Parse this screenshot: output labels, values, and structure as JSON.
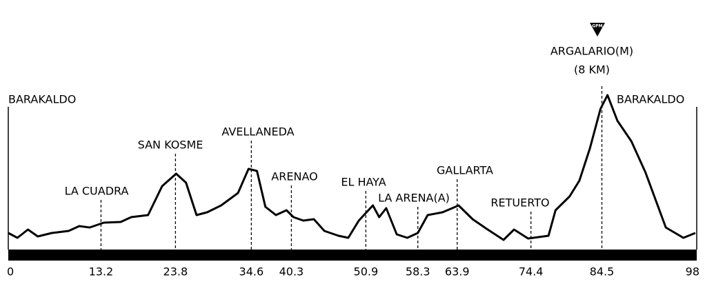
{
  "chart_data": {
    "type": "line",
    "x": [
      0,
      1.3,
      2.8,
      4.2,
      6.2,
      8.6,
      10.1,
      11.6,
      13.6,
      16,
      17.5,
      19.9,
      21.9,
      23.9,
      25.3,
      26.8,
      28.3,
      30.3,
      32.7,
      34.2,
      35.4,
      36.6,
      38.1,
      39.6,
      40.6,
      42,
      43.5,
      45,
      47,
      48.4,
      49.9,
      51.9,
      52.8,
      53.8,
      55.3,
      56.8,
      58.3,
      59.7,
      61.8,
      63.2,
      64.1,
      66.1,
      68.1,
      70.5,
      72,
      74,
      76.9,
      77.9,
      79.9,
      81.3,
      82.8,
      84.3,
      85.3,
      86.7,
      88.7,
      90.7,
      93.6,
      96.1,
      97.8
    ],
    "series": [
      {
        "color": "#000000",
        "values": [
          24,
          17,
          29,
          19,
          24,
          27,
          34,
          32,
          39,
          40,
          47,
          50,
          92,
          110,
          97,
          50,
          54,
          64,
          82,
          117,
          114,
          62,
          50,
          57,
          47,
          42,
          44,
          27,
          20,
          17,
          42,
          64,
          47,
          60,
          22,
          17,
          24,
          50,
          54,
          60,
          64,
          44,
          30,
          14,
          29,
          16,
          20,
          57,
          77,
          100,
          147,
          204,
          224,
          187,
          157,
          112,
          32,
          17,
          24
        ]
      }
    ],
    "xlim": [
      0,
      98
    ],
    "ylim": [
      0,
      250
    ],
    "xticks": [
      0,
      13.2,
      23.8,
      34.6,
      40.3,
      50.9,
      58.3,
      63.9,
      74.4,
      84.5,
      98
    ],
    "places": [
      {
        "label": "BARAKALDO",
        "km": 0
      },
      {
        "label": "LA CUADRA",
        "km": 13.2
      },
      {
        "label": "SAN KOSME",
        "km": 23.8
      },
      {
        "label": "AVELLANEDA",
        "km": 34.6
      },
      {
        "label": "ARENAO",
        "km": 40.3
      },
      {
        "label": "EL HAYA",
        "km": 50.9
      },
      {
        "label": "LA ARENA(A)",
        "km": 58.3
      },
      {
        "label": "GALLARTA",
        "km": 63.9
      },
      {
        "label": "RETUERTO",
        "km": 74.4
      },
      {
        "label": "ARGALARIO(M)",
        "km": 84.5,
        "note": "(8 KM)",
        "marker": "GPM"
      },
      {
        "label": "BARAKALDO",
        "km": 98
      }
    ]
  }
}
